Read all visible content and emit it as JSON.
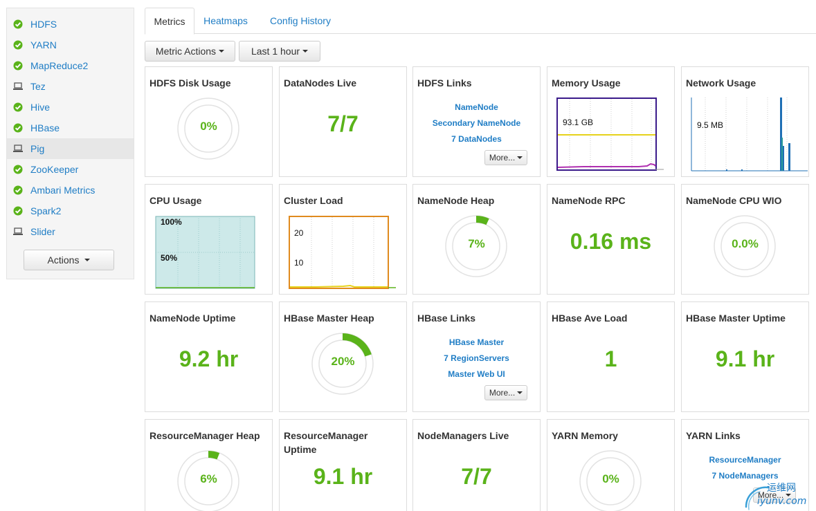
{
  "sidebar": {
    "services": [
      {
        "label": "HDFS",
        "status": "ok"
      },
      {
        "label": "YARN",
        "status": "ok"
      },
      {
        "label": "MapReduce2",
        "status": "ok"
      },
      {
        "label": "Tez",
        "status": "client"
      },
      {
        "label": "Hive",
        "status": "ok"
      },
      {
        "label": "HBase",
        "status": "ok"
      },
      {
        "label": "Pig",
        "status": "client"
      },
      {
        "label": "ZooKeeper",
        "status": "ok"
      },
      {
        "label": "Ambari Metrics",
        "status": "ok"
      },
      {
        "label": "Spark2",
        "status": "ok"
      },
      {
        "label": "Slider",
        "status": "client"
      }
    ],
    "actions_label": "Actions"
  },
  "tabs": [
    "Metrics",
    "Heatmaps",
    "Config History"
  ],
  "toolbar": {
    "metric_actions": "Metric Actions",
    "time_range": "Last 1 hour"
  },
  "colors": {
    "accent_green": "#5ab31a",
    "link_blue": "#1f7dc5",
    "ok_icon": "#5ab31a"
  },
  "widgets": {
    "hdfs_disk": {
      "title": "HDFS Disk Usage",
      "value": "0%",
      "percent": 0
    },
    "datanodes": {
      "title": "DataNodes Live",
      "value": "7/7"
    },
    "hdfs_links": {
      "title": "HDFS Links",
      "links": [
        "NameNode",
        "Secondary NameNode",
        "7 DataNodes"
      ],
      "more": "More..."
    },
    "memory": {
      "title": "Memory Usage",
      "label": "93.1 GB"
    },
    "network": {
      "title": "Network Usage",
      "label": "9.5 MB"
    },
    "cpu": {
      "title": "CPU Usage",
      "label_top": "100%",
      "label_mid": "50%"
    },
    "cluster_load": {
      "title": "Cluster Load",
      "label_top": "20",
      "label_mid": "10"
    },
    "nn_heap": {
      "title": "NameNode Heap",
      "value": "7%",
      "percent": 7
    },
    "nn_rpc": {
      "title": "NameNode RPC",
      "value": "0.16 ms"
    },
    "nn_cpu_wio": {
      "title": "NameNode CPU WIO",
      "value": "0.0%",
      "percent": 0
    },
    "nn_uptime": {
      "title": "NameNode Uptime",
      "value": "9.2 hr"
    },
    "hbase_heap": {
      "title": "HBase Master Heap",
      "value": "20%",
      "percent": 20
    },
    "hbase_links": {
      "title": "HBase Links",
      "links": [
        "HBase Master",
        "7 RegionServers",
        "Master Web UI"
      ],
      "more": "More..."
    },
    "hbase_load": {
      "title": "HBase Ave Load",
      "value": "1"
    },
    "hbase_uptime": {
      "title": "HBase Master Uptime",
      "value": "9.1 hr"
    },
    "rm_heap": {
      "title": "ResourceManager Heap",
      "value": "6%",
      "percent": 6
    },
    "rm_uptime": {
      "title": "ResourceManager Uptime",
      "value": "9.1 hr"
    },
    "nm_live": {
      "title": "NodeManagers Live",
      "value": "7/7"
    },
    "yarn_memory": {
      "title": "YARN Memory",
      "value": "0%",
      "percent": 0
    },
    "yarn_links": {
      "title": "YARN Links",
      "links": [
        "ResourceManager",
        "7 NodeManagers"
      ],
      "more": "More..."
    }
  },
  "watermark": {
    "cn": "运维网",
    "site": "iyunv.com"
  }
}
